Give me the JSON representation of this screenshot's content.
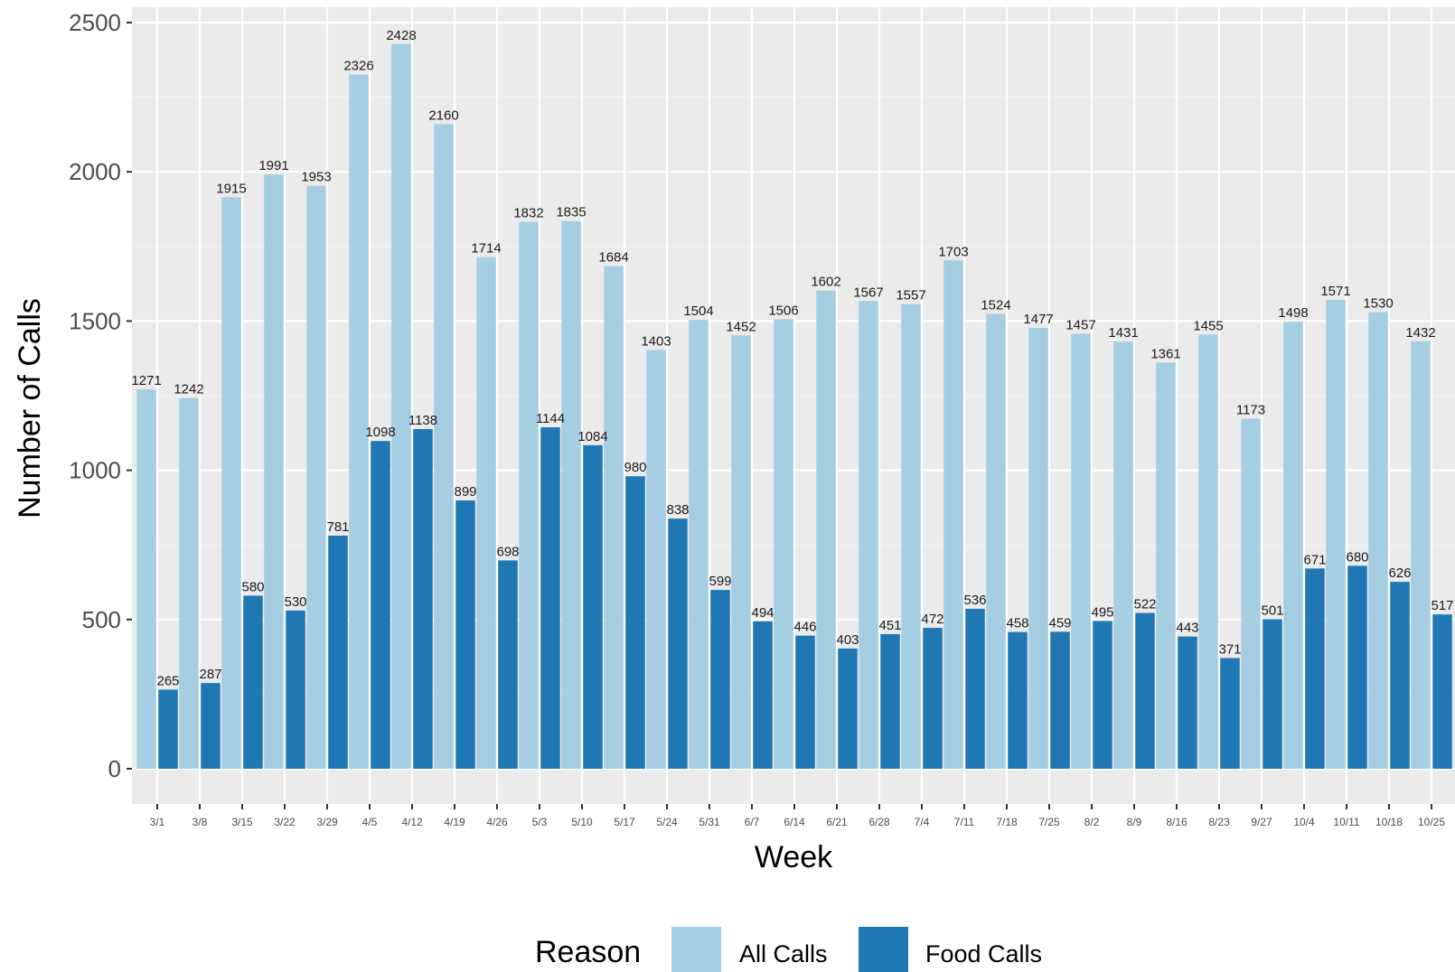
{
  "chart_data": {
    "type": "bar",
    "title": "",
    "xlabel": "Week",
    "ylabel": "Number of Calls",
    "ylim": [
      0,
      2500
    ],
    "yticks": [
      0,
      500,
      1000,
      1500,
      2000,
      2500
    ],
    "grid": true,
    "legend_title": "Reason",
    "legend_position": "bottom",
    "categories": [
      "3/1",
      "3/8",
      "3/15",
      "3/22",
      "3/29",
      "4/5",
      "4/12",
      "4/19",
      "4/26",
      "5/3",
      "5/10",
      "5/17",
      "5/24",
      "5/31",
      "6/7",
      "6/14",
      "6/21",
      "6/28",
      "7/4",
      "7/11",
      "7/18",
      "7/25",
      "8/2",
      "8/9",
      "8/16",
      "8/23",
      "9/27",
      "10/4",
      "10/11",
      "10/18",
      "10/25"
    ],
    "series": [
      {
        "name": "All Calls",
        "color": "#a6cee3",
        "values": [
          1271,
          1242,
          1915,
          1991,
          1953,
          2326,
          2428,
          2160,
          1714,
          1832,
          1835,
          1684,
          1403,
          1504,
          1452,
          1506,
          1602,
          1567,
          1557,
          1703,
          1524,
          1477,
          1457,
          1431,
          1361,
          1455,
          1173,
          1498,
          1571,
          1530,
          1432
        ]
      },
      {
        "name": "Food Calls",
        "color": "#1f78b4",
        "values": [
          265,
          287,
          580,
          530,
          781,
          1098,
          1138,
          899,
          698,
          1144,
          1084,
          980,
          838,
          599,
          494,
          446,
          403,
          451,
          472,
          536,
          458,
          459,
          495,
          522,
          443,
          371,
          501,
          671,
          680,
          626,
          517
        ]
      }
    ]
  }
}
